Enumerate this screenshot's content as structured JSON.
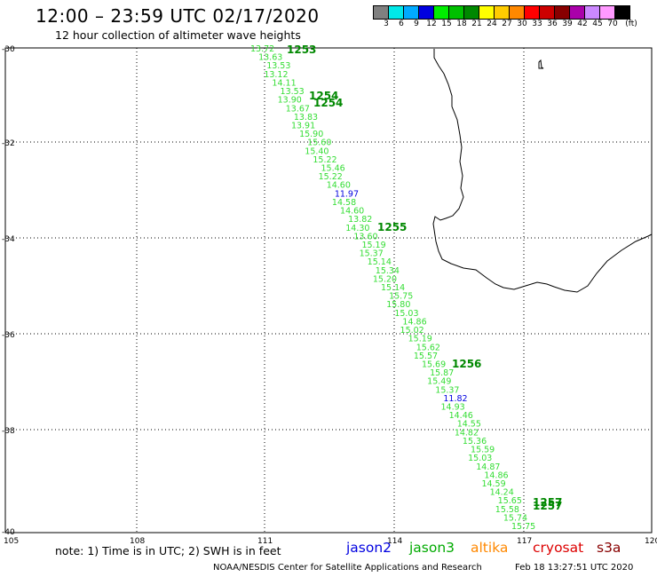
{
  "header": {
    "title": "12:00 – 23:59 UTC 02/17/2020",
    "subtitle": "12 hour collection of altimeter wave heights"
  },
  "colorbar": {
    "unit": "(ft)",
    "colors": [
      "#808080",
      "#00e8e8",
      "#00aaff",
      "#0000e0",
      "#00ee00",
      "#00c000",
      "#008800",
      "#ffff00",
      "#ffcc00",
      "#ff8800",
      "#ff0000",
      "#cc0000",
      "#880000",
      "#aa00aa",
      "#cc88ff",
      "#ff99ff",
      "#000000"
    ],
    "labels": [
      "3",
      "6",
      "9",
      "12",
      "15",
      "18",
      "21",
      "24",
      "27",
      "30",
      "33",
      "36",
      "39",
      "42",
      "45",
      "70"
    ]
  },
  "axes": {
    "lat_ticks": [
      "-30",
      "-32",
      "-34",
      "-36",
      "-38",
      "-40"
    ],
    "lon_ticks": [
      "105",
      "108",
      "111",
      "114",
      "117",
      "120"
    ]
  },
  "track": {
    "swh_values": [
      "13.72",
      "13.63",
      "13.53",
      "13.12",
      "14.11",
      "13.53",
      "13.90",
      "13.67",
      "13.83",
      "13.91",
      "15.90",
      "15.60",
      "15.40",
      "15.22",
      "15.46",
      "15.22",
      "14.60",
      "11.97",
      "14.58",
      "14.60",
      "13.82",
      "14.30",
      "13.60",
      "15.19",
      "15.37",
      "15.14",
      "15.34",
      "15.20",
      "15.14",
      "15.75",
      "15.80",
      "15.03",
      "14.86",
      "15.02",
      "15.19",
      "15.62",
      "15.57",
      "15.69",
      "15.87",
      "15.49",
      "15.37",
      "11.82",
      "14.93",
      "14.46",
      "14.55",
      "14.82",
      "15.36",
      "15.59",
      "15.03",
      "14.87",
      "14.86",
      "14.59",
      "14.24",
      "15.65",
      "15.58",
      "15.74",
      "15.75"
    ],
    "time_labels": [
      "1253",
      "1254",
      "1254",
      "1255",
      "1256",
      "1257",
      "1257"
    ]
  },
  "satellites": [
    {
      "name": "jason2",
      "color": "#0000e0"
    },
    {
      "name": "jason3",
      "color": "#00aa00"
    },
    {
      "name": "altika",
      "color": "#ff8800"
    },
    {
      "name": "cryosat",
      "color": "#dd0000"
    },
    {
      "name": "s3a",
      "color": "#880000"
    }
  ],
  "note": "note: 1) Time is in UTC; 2) SWH is in feet",
  "footer": {
    "credit": "NOAA/NESDIS Center for Satellite Applications and Research",
    "generated": "Feb 18 13:27:51 UTC 2020"
  }
}
